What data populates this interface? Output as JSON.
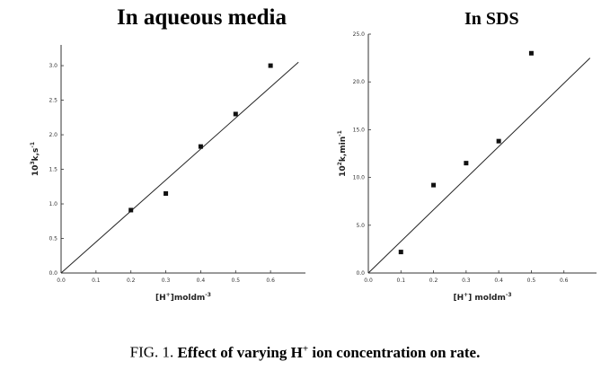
{
  "chart_data": [
    {
      "type": "scatter",
      "title": "In aqueous media",
      "xlabel_main": "[H",
      "xlabel_sup": "+",
      "xlabel_tail": "]moldm",
      "xlabel_unit_sup": "-3",
      "ylabel_main": "10",
      "ylabel_sup": "3",
      "ylabel_tail": "k,s",
      "ylabel_unit_sup": "-1",
      "xlim": [
        0.0,
        0.7
      ],
      "ylim": [
        0.0,
        3.3
      ],
      "x_ticks": [
        0.0,
        0.1,
        0.2,
        0.3,
        0.4,
        0.5,
        0.6
      ],
      "x_tick_labels": [
        "0.0",
        "0.1",
        "0.2",
        "0.3",
        "0.4",
        "0.5",
        "0.6"
      ],
      "y_ticks": [
        0.0,
        0.5,
        1.0,
        1.5,
        2.0,
        2.5,
        3.0
      ],
      "y_tick_labels": [
        "0.0",
        "0.5",
        "1.0",
        "1.5",
        "2.0",
        "2.5",
        "3.0"
      ],
      "series": [
        {
          "points": [
            [
              0.2,
              0.91
            ],
            [
              0.3,
              1.15
            ],
            [
              0.4,
              1.83
            ],
            [
              0.5,
              2.3
            ],
            [
              0.6,
              3.0
            ]
          ]
        }
      ],
      "fit_line": [
        [
          0.0,
          0.0
        ],
        [
          0.68,
          3.05
        ]
      ]
    },
    {
      "type": "scatter",
      "title": "In SDS",
      "xlabel_main": "[H",
      "xlabel_sup": "+",
      "xlabel_tail": "] moldm",
      "xlabel_unit_sup": "-3",
      "ylabel_main": "10",
      "ylabel_sup": "2",
      "ylabel_tail": "k,min",
      "ylabel_unit_sup": "-1",
      "xlim": [
        0.0,
        0.7
      ],
      "ylim": [
        0.0,
        25.0
      ],
      "x_ticks": [
        0.0,
        0.1,
        0.2,
        0.3,
        0.4,
        0.5,
        0.6
      ],
      "x_tick_labels": [
        "0.0",
        "0.1",
        "0.2",
        "0.3",
        "0.4",
        "0.5",
        "0.6"
      ],
      "y_ticks": [
        0.0,
        5.0,
        10.0,
        15.0,
        20.0,
        25.0
      ],
      "y_tick_labels": [
        "0.0",
        "5.0",
        "10.0",
        "15.0",
        "20.0",
        "25.0"
      ],
      "series": [
        {
          "points": [
            [
              0.1,
              2.2
            ],
            [
              0.2,
              9.2
            ],
            [
              0.3,
              11.5
            ],
            [
              0.4,
              13.8
            ],
            [
              0.5,
              23.0
            ]
          ]
        }
      ],
      "fit_line": [
        [
          0.0,
          0.0
        ],
        [
          0.68,
          22.5
        ]
      ]
    }
  ],
  "caption": {
    "prefix": "FIG. 1. ",
    "bold_pre": "Effect of varying H",
    "bold_sup": "+",
    "bold_post": " ion concentration on rate."
  }
}
